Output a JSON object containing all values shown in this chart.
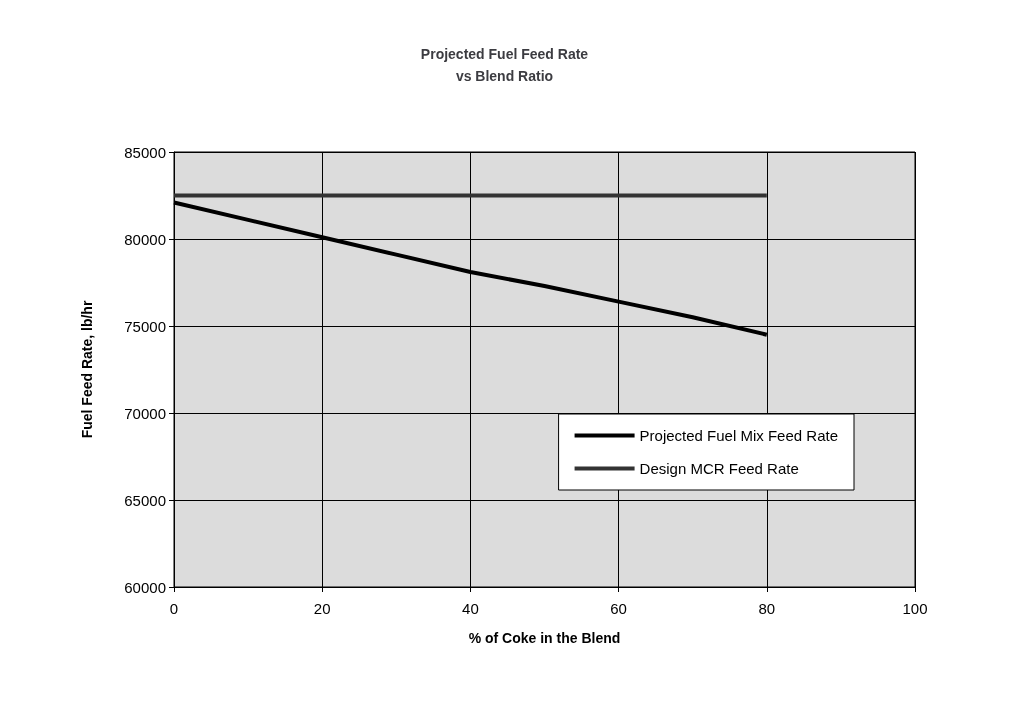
{
  "chart_data": {
    "type": "line",
    "title": "Projected Fuel Feed Rate\nvs Blend Ratio",
    "xlabel": "% of Coke in the Blend",
    "ylabel": "Fuel Feed Rate, lb/hr",
    "x": [
      0,
      10,
      20,
      30,
      40,
      50,
      60,
      70,
      80
    ],
    "series": [
      {
        "name": "Projected Fuel Mix Feed Rate",
        "color": "#000000",
        "values": [
          82100,
          81100,
          80100,
          79100,
          78100,
          77300,
          76400,
          75500,
          74500
        ]
      },
      {
        "name": "Design MCR Feed Rate",
        "color": "#333333",
        "values": [
          82500,
          82500,
          82500,
          82500,
          82500,
          82500,
          82500,
          82500,
          82500
        ]
      }
    ],
    "xlim": [
      0,
      100
    ],
    "xticks": [
      0,
      20,
      40,
      60,
      80,
      100
    ],
    "ylim": [
      60000,
      85000
    ],
    "yticks": [
      60000,
      65000,
      70000,
      75000,
      80000,
      85000
    ],
    "grid": true,
    "legend": "bottom right",
    "marker": "none",
    "line_style": "solid"
  }
}
